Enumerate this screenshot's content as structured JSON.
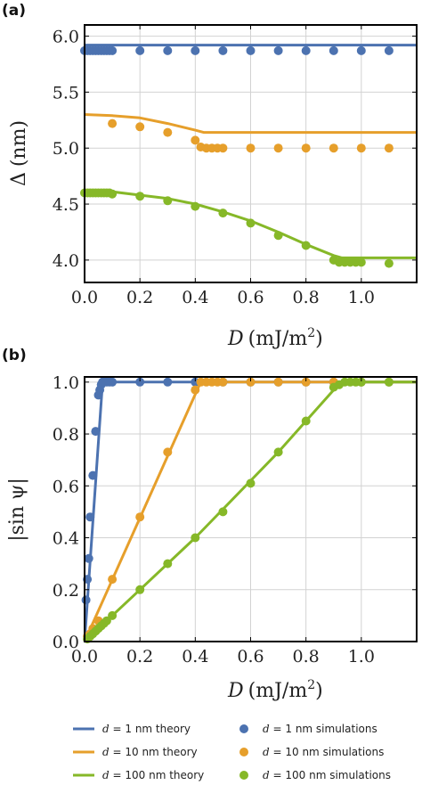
{
  "colors": {
    "blue": "#4c72b0",
    "orange": "#e69f2b",
    "green": "#86b828"
  },
  "chart_data": [
    {
      "panel": "(a)",
      "type": "line",
      "xlabel_var": "D",
      "xlabel_unit": "(mJ/m",
      "xlabel_sup": "2",
      "xlabel_close": ")",
      "ylabel_var": "Δ",
      "ylabel_unit": "(nm)",
      "xlim": [
        0,
        1.2
      ],
      "ylim": [
        3.8,
        6.1
      ],
      "xticks": [
        0,
        0.2,
        0.4,
        0.6,
        0.8,
        1.0
      ],
      "xtick_labels": [
        "0.0",
        "0.2",
        "0.4",
        "0.6",
        "0.8",
        "1.0"
      ],
      "yticks": [
        4.0,
        4.5,
        5.0,
        5.5,
        6.0
      ],
      "ytick_labels": [
        "4.0",
        "4.5",
        "5.0",
        "5.5",
        "6.0"
      ],
      "series": [
        {
          "name": "d = 1 nm theory",
          "kind": "line",
          "color": "blue",
          "x": [
            0,
            1.2
          ],
          "y": [
            5.92,
            5.92
          ]
        },
        {
          "name": "d = 10 nm theory",
          "kind": "line",
          "color": "orange",
          "x": [
            0,
            0.1,
            0.2,
            0.3,
            0.35,
            0.4,
            0.43,
            1.2
          ],
          "y": [
            5.3,
            5.29,
            5.27,
            5.22,
            5.19,
            5.16,
            5.14,
            5.14
          ]
        },
        {
          "name": "d = 100 nm theory",
          "kind": "line",
          "color": "green",
          "x": [
            0,
            0.1,
            0.2,
            0.3,
            0.4,
            0.5,
            0.6,
            0.7,
            0.8,
            0.9,
            0.93,
            1.2
          ],
          "y": [
            4.62,
            4.61,
            4.58,
            4.55,
            4.5,
            4.43,
            4.35,
            4.25,
            4.14,
            4.04,
            4.02,
            4.02
          ]
        },
        {
          "name": "d = 1 nm simulations",
          "kind": "scatter",
          "color": "blue",
          "x": [
            0,
            0.01,
            0.02,
            0.03,
            0.04,
            0.05,
            0.06,
            0.07,
            0.08,
            0.09,
            0.1,
            0.2,
            0.3,
            0.4,
            0.5,
            0.6,
            0.7,
            0.8,
            0.9,
            1.0,
            1.1
          ],
          "y": [
            5.87,
            5.87,
            5.87,
            5.87,
            5.87,
            5.87,
            5.87,
            5.87,
            5.87,
            5.87,
            5.87,
            5.87,
            5.87,
            5.87,
            5.87,
            5.87,
            5.87,
            5.87,
            5.87,
            5.87,
            5.87
          ]
        },
        {
          "name": "d = 10 nm simulations",
          "kind": "scatter",
          "color": "orange",
          "x": [
            0.1,
            0.2,
            0.3,
            0.4,
            0.42,
            0.44,
            0.46,
            0.48,
            0.5,
            0.6,
            0.7,
            0.8,
            0.9,
            1.0,
            1.1
          ],
          "y": [
            5.22,
            5.19,
            5.14,
            5.07,
            5.01,
            5.0,
            5.0,
            5.0,
            5.0,
            5.0,
            5.0,
            5.0,
            5.0,
            5.0,
            5.0
          ]
        },
        {
          "name": "d = 100 nm simulations",
          "kind": "scatter",
          "color": "green",
          "x": [
            0,
            0.01,
            0.02,
            0.03,
            0.04,
            0.05,
            0.06,
            0.07,
            0.08,
            0.09,
            0.1,
            0.2,
            0.3,
            0.4,
            0.5,
            0.6,
            0.7,
            0.8,
            0.9,
            0.92,
            0.94,
            0.96,
            0.98,
            1.0,
            1.1
          ],
          "y": [
            4.6,
            4.6,
            4.6,
            4.6,
            4.6,
            4.6,
            4.6,
            4.6,
            4.6,
            4.6,
            4.59,
            4.57,
            4.53,
            4.48,
            4.42,
            4.33,
            4.22,
            4.13,
            4.0,
            3.98,
            3.98,
            3.98,
            3.98,
            3.98,
            3.97
          ]
        }
      ]
    },
    {
      "panel": "(b)",
      "type": "line",
      "xlabel_var": "D",
      "xlabel_unit": "(mJ/m",
      "xlabel_sup": "2",
      "xlabel_close": ")",
      "ylabel": "|sin ψ|",
      "xlim": [
        0,
        1.2
      ],
      "ylim": [
        0,
        1.02
      ],
      "xticks": [
        0,
        0.2,
        0.4,
        0.6,
        0.8,
        1.0
      ],
      "xtick_labels": [
        "0.0",
        "0.2",
        "0.4",
        "0.6",
        "0.8",
        "1.0"
      ],
      "yticks": [
        0,
        0.2,
        0.4,
        0.6,
        0.8,
        1.0
      ],
      "ytick_labels": [
        "0.0",
        "0.2",
        "0.4",
        "0.6",
        "0.8",
        "1.0"
      ],
      "series": [
        {
          "name": "d = 1 nm theory",
          "kind": "line",
          "color": "blue",
          "x": [
            0,
            0.065,
            1.2
          ],
          "y": [
            0,
            1.0,
            1.0
          ]
        },
        {
          "name": "d = 10 nm theory",
          "kind": "line",
          "color": "orange",
          "x": [
            0,
            0.42,
            1.2
          ],
          "y": [
            0,
            1.0,
            1.0
          ]
        },
        {
          "name": "d = 100 nm theory",
          "kind": "line",
          "color": "green",
          "x": [
            0,
            0.1,
            0.2,
            0.3,
            0.4,
            0.5,
            0.6,
            0.7,
            0.8,
            0.9,
            0.93,
            1.2
          ],
          "y": [
            0,
            0.1,
            0.2,
            0.3,
            0.4,
            0.51,
            0.62,
            0.73,
            0.85,
            0.97,
            1.0,
            1.0
          ]
        },
        {
          "name": "d = 1 nm simulations",
          "kind": "scatter",
          "color": "blue",
          "x": [
            0.005,
            0.01,
            0.015,
            0.02,
            0.03,
            0.04,
            0.05,
            0.055,
            0.06,
            0.065,
            0.07,
            0.08,
            0.09,
            0.1,
            0.2,
            0.3,
            0.4,
            0.5,
            0.6,
            0.7,
            0.8,
            0.9,
            1.0,
            1.1
          ],
          "y": [
            0.16,
            0.24,
            0.32,
            0.48,
            0.64,
            0.81,
            0.95,
            0.97,
            0.99,
            1.0,
            1.0,
            1.0,
            1.0,
            1.0,
            1.0,
            1.0,
            1.0,
            1.0,
            1.0,
            1.0,
            1.0,
            1.0,
            1.0,
            1.0
          ]
        },
        {
          "name": "d = 10 nm simulations",
          "kind": "scatter",
          "color": "orange",
          "x": [
            0.01,
            0.02,
            0.03,
            0.05,
            0.1,
            0.2,
            0.3,
            0.4,
            0.42,
            0.44,
            0.46,
            0.48,
            0.5,
            0.6,
            0.7,
            0.8,
            0.9,
            1.0,
            1.1
          ],
          "y": [
            0.02,
            0.03,
            0.05,
            0.08,
            0.24,
            0.48,
            0.73,
            0.97,
            1.0,
            1.0,
            1.0,
            1.0,
            1.0,
            1.0,
            1.0,
            1.0,
            1.0,
            1.0,
            1.0
          ]
        },
        {
          "name": "d = 100 nm simulations",
          "kind": "scatter",
          "color": "green",
          "x": [
            0.01,
            0.02,
            0.03,
            0.04,
            0.05,
            0.06,
            0.07,
            0.08,
            0.1,
            0.2,
            0.3,
            0.4,
            0.5,
            0.6,
            0.7,
            0.8,
            0.9,
            0.92,
            0.94,
            0.96,
            0.98,
            1.0,
            1.1
          ],
          "y": [
            0.01,
            0.02,
            0.03,
            0.04,
            0.05,
            0.06,
            0.07,
            0.08,
            0.1,
            0.2,
            0.3,
            0.4,
            0.5,
            0.61,
            0.73,
            0.85,
            0.98,
            0.99,
            1.0,
            1.0,
            1.0,
            1.0,
            1.0
          ]
        }
      ]
    }
  ],
  "legend": {
    "placement": "bottom",
    "entries": [
      {
        "kind": "line",
        "color": "blue",
        "var": "d",
        "text": " = 1 nm theory"
      },
      {
        "kind": "dot",
        "color": "blue",
        "var": "d",
        "text": " = 1 nm simulations"
      },
      {
        "kind": "line",
        "color": "orange",
        "var": "d",
        "text": " = 10 nm theory"
      },
      {
        "kind": "dot",
        "color": "orange",
        "var": "d",
        "text": " = 10 nm simulations"
      },
      {
        "kind": "line",
        "color": "green",
        "var": "d",
        "text": " = 100 nm theory"
      },
      {
        "kind": "dot",
        "color": "green",
        "var": "d",
        "text": " = 100 nm simulations"
      }
    ]
  }
}
